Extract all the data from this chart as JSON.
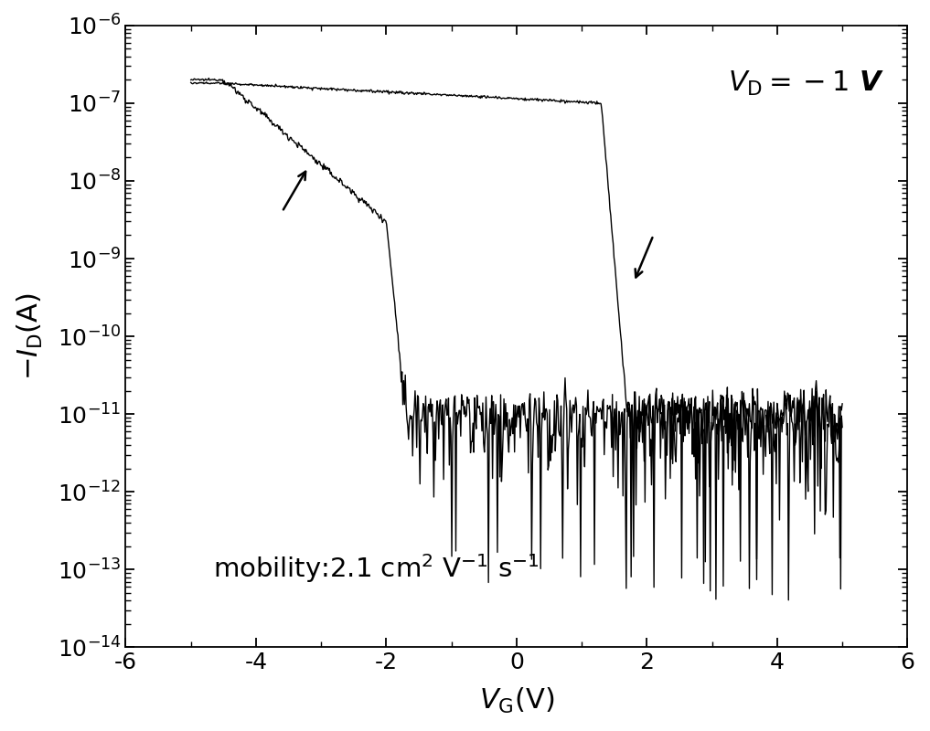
{
  "xlabel": "$V_{\\mathrm{G}}$(V)",
  "ylabel": "$-I_{\\mathrm{D}}$(A)",
  "xlim": [
    -6,
    6
  ],
  "ylim_log": [
    -14,
    -6
  ],
  "background_color": "#ffffff",
  "line_color": "#000000",
  "xlabel_fontsize": 22,
  "ylabel_fontsize": 22,
  "tick_fontsize": 18,
  "seed": 12345
}
